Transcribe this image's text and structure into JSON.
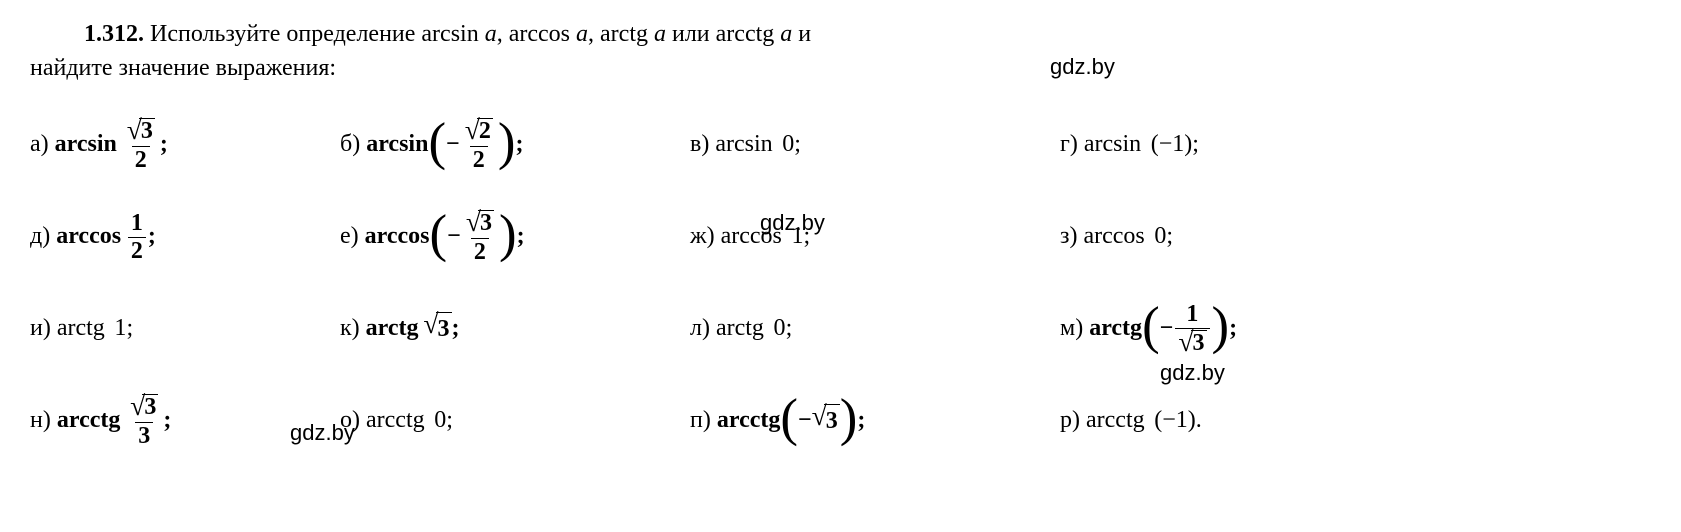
{
  "problem_number": "1.312.",
  "intro_part1": "Используйте определение arcsin",
  "intro_a1": "a",
  "intro_comma1": ", arccos",
  "intro_a2": "a",
  "intro_comma2": ", arctg",
  "intro_a3": "a",
  "intro_or": " или arcctg",
  "intro_a4": "a",
  "intro_and": " и",
  "intro_line2": "найдите значение выражения:",
  "watermarks": {
    "w1": "gdz.by",
    "w2": "gdz.by",
    "w3": "gdz.by",
    "w4": "gdz.by"
  },
  "functions": {
    "arcsin": "arcsin",
    "arccos": "arccos",
    "arctg": "arctg",
    "arcctg": "arcctg"
  },
  "items": {
    "a": {
      "letter": "а)",
      "func": "arcsin",
      "bold": true,
      "paren": false,
      "neg": false,
      "arg_type": "frac_sqrt_over_n",
      "sqrt_val": "3",
      "den": "2"
    },
    "b": {
      "letter": "б)",
      "func": "arcsin",
      "bold": true,
      "paren": true,
      "neg": true,
      "arg_type": "frac_sqrt_over_n",
      "sqrt_val": "2",
      "den": "2"
    },
    "v": {
      "letter": "в)",
      "func": "arcsin",
      "bold": false,
      "paren": false,
      "neg": false,
      "arg_type": "plain",
      "val": "0"
    },
    "g": {
      "letter": "г)",
      "func": "arcsin",
      "bold": false,
      "paren": false,
      "neg": false,
      "arg_type": "pplain",
      "val": "−1"
    },
    "d": {
      "letter": "д)",
      "func": "arccos",
      "bold": true,
      "paren": false,
      "neg": false,
      "arg_type": "frac",
      "num": "1",
      "den": "2"
    },
    "e": {
      "letter": "е)",
      "func": "arccos",
      "bold": true,
      "paren": true,
      "neg": true,
      "arg_type": "frac_sqrt_over_n",
      "sqrt_val": "3",
      "den": "2"
    },
    "zh": {
      "letter": "ж)",
      "func": "arccos",
      "bold": false,
      "paren": false,
      "neg": false,
      "arg_type": "plain",
      "val": "1"
    },
    "z": {
      "letter": "з)",
      "func": "arccos",
      "bold": false,
      "paren": false,
      "neg": false,
      "arg_type": "plain",
      "val": "0"
    },
    "i": {
      "letter": "и)",
      "func": "arctg",
      "bold": false,
      "paren": false,
      "neg": false,
      "arg_type": "plain",
      "val": "1"
    },
    "k": {
      "letter": "к)",
      "func": "arctg",
      "bold": true,
      "paren": false,
      "neg": false,
      "arg_type": "sqrt",
      "sqrt_val": "3"
    },
    "l": {
      "letter": "л)",
      "func": "arctg",
      "bold": false,
      "paren": false,
      "neg": false,
      "arg_type": "plain",
      "val": "0"
    },
    "m": {
      "letter": "м)",
      "func": "arctg",
      "bold": true,
      "paren": true,
      "neg": true,
      "arg_type": "frac_n_over_sqrt",
      "num": "1",
      "sqrt_val": "3"
    },
    "n": {
      "letter": "н)",
      "func": "arcctg",
      "bold": true,
      "paren": false,
      "neg": false,
      "arg_type": "frac_sqrt_over_n",
      "sqrt_val": "3",
      "den": "3"
    },
    "o": {
      "letter": "о)",
      "func": "arcctg",
      "bold": false,
      "paren": false,
      "neg": false,
      "arg_type": "plain",
      "val": "0"
    },
    "p": {
      "letter": "п)",
      "func": "arcctg",
      "bold": true,
      "paren": true,
      "neg": true,
      "arg_type": "sqrt",
      "sqrt_val": "3"
    },
    "r": {
      "letter": "р)",
      "func": "arcctg",
      "bold": false,
      "paren": false,
      "neg": false,
      "arg_type": "pplain",
      "val": "−1"
    }
  },
  "terminators": {
    "semi": ";",
    "period": "."
  }
}
